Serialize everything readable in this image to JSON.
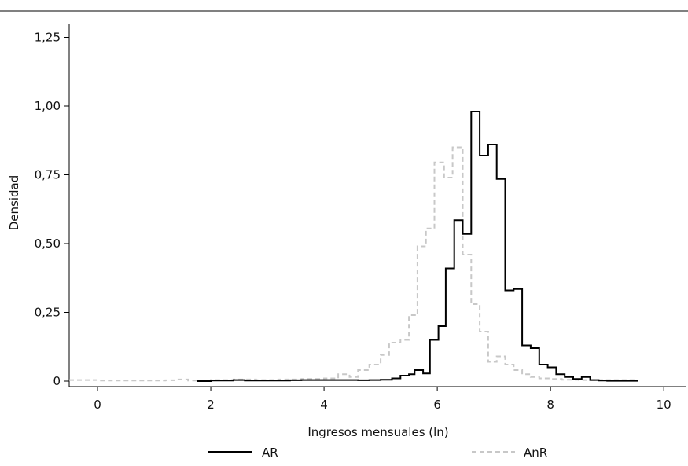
{
  "chart_data": {
    "type": "line",
    "subtype": "step-histogram",
    "xlabel": "Ingresos mensuales (ln)",
    "ylabel": "Densidad",
    "xlim": [
      -0.5,
      10.4
    ],
    "ylim": [
      -0.02,
      1.3
    ],
    "x_ticks": [
      0,
      2,
      4,
      6,
      8,
      10
    ],
    "x_tick_labels": [
      "0",
      "2",
      "4",
      "6",
      "8",
      "10"
    ],
    "y_ticks": [
      0,
      0.25,
      0.5,
      0.75,
      1.0,
      1.25
    ],
    "y_tick_labels": [
      "0",
      "0,25",
      "0,50",
      "0,75",
      "1,00",
      "1,25"
    ],
    "grid": false,
    "legend_position": "bottom",
    "top_rule": true,
    "series": [
      {
        "name": "AR",
        "color": "#000000",
        "style": "solid",
        "points": [
          [
            1.75,
            0
          ],
          [
            2.0,
            0.002
          ],
          [
            2.4,
            0.004
          ],
          [
            2.6,
            0.002
          ],
          [
            3.0,
            0.002
          ],
          [
            3.4,
            0.003
          ],
          [
            3.6,
            0.004
          ],
          [
            4.0,
            0.004
          ],
          [
            4.4,
            0.004
          ],
          [
            4.6,
            0.003
          ],
          [
            4.8,
            0.004
          ],
          [
            5.0,
            0.005
          ],
          [
            5.2,
            0.01
          ],
          [
            5.35,
            0.02
          ],
          [
            5.5,
            0.025
          ],
          [
            5.6,
            0.04
          ],
          [
            5.75,
            0.028
          ],
          [
            5.87,
            0.15
          ],
          [
            6.02,
            0.2
          ],
          [
            6.15,
            0.41
          ],
          [
            6.3,
            0.585
          ],
          [
            6.45,
            0.535
          ],
          [
            6.6,
            0.98
          ],
          [
            6.75,
            0.82
          ],
          [
            6.9,
            0.86
          ],
          [
            7.05,
            0.735
          ],
          [
            7.2,
            0.33
          ],
          [
            7.35,
            0.335
          ],
          [
            7.5,
            0.13
          ],
          [
            7.65,
            0.12
          ],
          [
            7.8,
            0.06
          ],
          [
            7.95,
            0.05
          ],
          [
            8.1,
            0.025
          ],
          [
            8.25,
            0.015
          ],
          [
            8.4,
            0.008
          ],
          [
            8.55,
            0.015
          ],
          [
            8.7,
            0.004
          ],
          [
            8.85,
            0.002
          ],
          [
            9.0,
            0.001
          ],
          [
            9.55,
            0.001
          ]
        ]
      },
      {
        "name": "AnR",
        "color": "#c8c8c8",
        "style": "dashed",
        "points": [
          [
            -0.5,
            0.004
          ],
          [
            0.0,
            0.002
          ],
          [
            0.5,
            0.002
          ],
          [
            1.2,
            0.003
          ],
          [
            1.4,
            0.006
          ],
          [
            1.6,
            0.002
          ],
          [
            2.0,
            0.004
          ],
          [
            2.4,
            0.006
          ],
          [
            2.8,
            0.004
          ],
          [
            3.2,
            0.006
          ],
          [
            3.6,
            0.008
          ],
          [
            4.0,
            0.01
          ],
          [
            4.25,
            0.025
          ],
          [
            4.45,
            0.015
          ],
          [
            4.6,
            0.04
          ],
          [
            4.8,
            0.06
          ],
          [
            5.0,
            0.095
          ],
          [
            5.15,
            0.14
          ],
          [
            5.35,
            0.15
          ],
          [
            5.5,
            0.24
          ],
          [
            5.65,
            0.49
          ],
          [
            5.8,
            0.555
          ],
          [
            5.95,
            0.795
          ],
          [
            6.12,
            0.74
          ],
          [
            6.27,
            0.85
          ],
          [
            6.45,
            0.46
          ],
          [
            6.6,
            0.28
          ],
          [
            6.75,
            0.18
          ],
          [
            6.9,
            0.07
          ],
          [
            7.05,
            0.09
          ],
          [
            7.2,
            0.06
          ],
          [
            7.35,
            0.04
          ],
          [
            7.5,
            0.025
          ],
          [
            7.65,
            0.015
          ],
          [
            7.8,
            0.01
          ],
          [
            8.0,
            0.008
          ],
          [
            8.2,
            0.005
          ],
          [
            8.5,
            0.004
          ],
          [
            9.5,
            0.002
          ]
        ]
      }
    ]
  }
}
